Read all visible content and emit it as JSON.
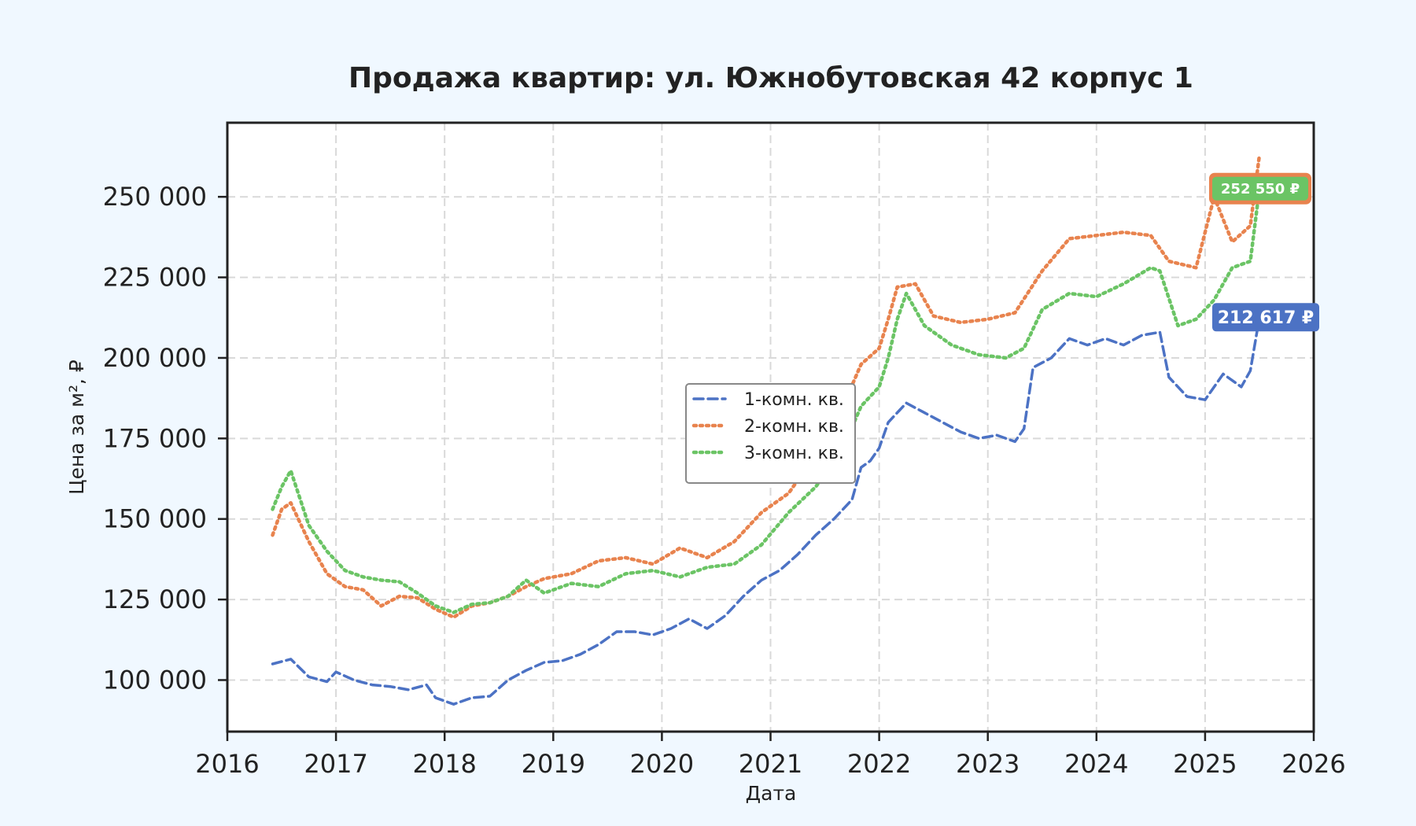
{
  "chart_data": {
    "type": "line",
    "title": "Продажа квартир: ул. Южнобутовская 42 корпус 1",
    "xlabel": "Дата",
    "ylabel": "Цена за м², ₽",
    "xlim": [
      "2016-01-01",
      "2026-01-01"
    ],
    "ylim": [
      84000,
      273000
    ],
    "x_ticks": [
      "2016",
      "2017",
      "2018",
      "2019",
      "2020",
      "2021",
      "2022",
      "2023",
      "2024",
      "2025",
      "2026"
    ],
    "y_ticks": [
      100000,
      125000,
      150000,
      175000,
      200000,
      225000,
      250000
    ],
    "y_tick_labels": [
      "100 000",
      "125 000",
      "150 000",
      "175 000",
      "200 000",
      "225 000",
      "250 000"
    ],
    "grid": true,
    "legend_position": "center",
    "series": [
      {
        "name": "1-комн. кв.",
        "color": "#4c72c4",
        "dash": "dashed",
        "end_label": "212 617 ₽",
        "points": [
          [
            "2016-06",
            105000
          ],
          [
            "2016-08",
            106500
          ],
          [
            "2016-10",
            101000
          ],
          [
            "2016-12",
            99500
          ],
          [
            "2017-01",
            102500
          ],
          [
            "2017-03",
            100000
          ],
          [
            "2017-05",
            98500
          ],
          [
            "2017-07",
            98000
          ],
          [
            "2017-09",
            97000
          ],
          [
            "2017-11",
            98500
          ],
          [
            "2017-12",
            94500
          ],
          [
            "2018-02",
            92500
          ],
          [
            "2018-04",
            94500
          ],
          [
            "2018-06",
            95000
          ],
          [
            "2018-08",
            100000
          ],
          [
            "2018-10",
            103000
          ],
          [
            "2018-12",
            105500
          ],
          [
            "2019-02",
            106000
          ],
          [
            "2019-04",
            108000
          ],
          [
            "2019-06",
            111000
          ],
          [
            "2019-08",
            115000
          ],
          [
            "2019-10",
            115000
          ],
          [
            "2019-12",
            114000
          ],
          [
            "2020-02",
            116000
          ],
          [
            "2020-04",
            119000
          ],
          [
            "2020-06",
            116000
          ],
          [
            "2020-08",
            120000
          ],
          [
            "2020-10",
            126000
          ],
          [
            "2020-12",
            131000
          ],
          [
            "2021-02",
            134000
          ],
          [
            "2021-04",
            139000
          ],
          [
            "2021-06",
            145000
          ],
          [
            "2021-08",
            150000
          ],
          [
            "2021-10",
            156000
          ],
          [
            "2021-11",
            166000
          ],
          [
            "2021-12",
            168000
          ],
          [
            "2022-01",
            172000
          ],
          [
            "2022-02",
            180000
          ],
          [
            "2022-04",
            186000
          ],
          [
            "2022-06",
            183000
          ],
          [
            "2022-08",
            180000
          ],
          [
            "2022-10",
            177000
          ],
          [
            "2022-12",
            175000
          ],
          [
            "2023-02",
            176000
          ],
          [
            "2023-04",
            174000
          ],
          [
            "2023-05",
            178000
          ],
          [
            "2023-06",
            197000
          ],
          [
            "2023-08",
            200000
          ],
          [
            "2023-10",
            206000
          ],
          [
            "2023-12",
            204000
          ],
          [
            "2024-02",
            206000
          ],
          [
            "2024-04",
            204000
          ],
          [
            "2024-06",
            207000
          ],
          [
            "2024-08",
            208000
          ],
          [
            "2024-09",
            194000
          ],
          [
            "2024-11",
            188000
          ],
          [
            "2025-01",
            187000
          ],
          [
            "2025-03",
            195000
          ],
          [
            "2025-05",
            191000
          ],
          [
            "2025-06",
            196000
          ],
          [
            "2025-07",
            212617
          ]
        ]
      },
      {
        "name": "2-комн. кв.",
        "color": "#e8834e",
        "dash": "dotted",
        "end_label": "",
        "points": [
          [
            "2016-06",
            145000
          ],
          [
            "2016-07",
            153000
          ],
          [
            "2016-08",
            155000
          ],
          [
            "2016-10",
            143000
          ],
          [
            "2016-12",
            133000
          ],
          [
            "2017-02",
            129000
          ],
          [
            "2017-04",
            128000
          ],
          [
            "2017-06",
            123000
          ],
          [
            "2017-08",
            126000
          ],
          [
            "2017-10",
            125500
          ],
          [
            "2017-12",
            122000
          ],
          [
            "2018-02",
            119500
          ],
          [
            "2018-04",
            123000
          ],
          [
            "2018-06",
            124000
          ],
          [
            "2018-08",
            126000
          ],
          [
            "2018-10",
            129000
          ],
          [
            "2018-12",
            131500
          ],
          [
            "2019-03",
            133000
          ],
          [
            "2019-06",
            137000
          ],
          [
            "2019-09",
            138000
          ],
          [
            "2019-12",
            136000
          ],
          [
            "2020-03",
            141000
          ],
          [
            "2020-06",
            138000
          ],
          [
            "2020-09",
            143000
          ],
          [
            "2020-12",
            152000
          ],
          [
            "2021-03",
            158000
          ],
          [
            "2021-05",
            166000
          ],
          [
            "2021-07",
            175000
          ],
          [
            "2021-09",
            185000
          ],
          [
            "2021-11",
            198000
          ],
          [
            "2022-01",
            203000
          ],
          [
            "2022-02",
            212000
          ],
          [
            "2022-03",
            222000
          ],
          [
            "2022-05",
            223000
          ],
          [
            "2022-07",
            213000
          ],
          [
            "2022-10",
            211000
          ],
          [
            "2023-01",
            212000
          ],
          [
            "2023-04",
            214000
          ],
          [
            "2023-07",
            227000
          ],
          [
            "2023-10",
            237000
          ],
          [
            "2024-01",
            238000
          ],
          [
            "2024-04",
            239000
          ],
          [
            "2024-07",
            238000
          ],
          [
            "2024-09",
            230000
          ],
          [
            "2024-12",
            228000
          ],
          [
            "2025-02",
            250000
          ],
          [
            "2025-04",
            236000
          ],
          [
            "2025-06",
            241000
          ],
          [
            "2025-07",
            263000
          ]
        ]
      },
      {
        "name": "3-комн. кв.",
        "color": "#6bc465",
        "dash": "dotted",
        "end_label": "252 550 ₽",
        "points": [
          [
            "2016-06",
            153000
          ],
          [
            "2016-07",
            160000
          ],
          [
            "2016-08",
            165000
          ],
          [
            "2016-10",
            148000
          ],
          [
            "2016-12",
            140000
          ],
          [
            "2017-02",
            134000
          ],
          [
            "2017-04",
            132000
          ],
          [
            "2017-06",
            131000
          ],
          [
            "2017-08",
            130500
          ],
          [
            "2017-10",
            127000
          ],
          [
            "2017-12",
            123000
          ],
          [
            "2018-02",
            121000
          ],
          [
            "2018-04",
            123500
          ],
          [
            "2018-06",
            124000
          ],
          [
            "2018-08",
            126000
          ],
          [
            "2018-10",
            131000
          ],
          [
            "2018-12",
            127000
          ],
          [
            "2019-03",
            130000
          ],
          [
            "2019-06",
            129000
          ],
          [
            "2019-09",
            133000
          ],
          [
            "2019-12",
            134000
          ],
          [
            "2020-03",
            132000
          ],
          [
            "2020-06",
            135000
          ],
          [
            "2020-09",
            136000
          ],
          [
            "2020-12",
            142000
          ],
          [
            "2021-03",
            152000
          ],
          [
            "2021-06",
            160000
          ],
          [
            "2021-09",
            172000
          ],
          [
            "2021-11",
            185000
          ],
          [
            "2022-01",
            191000
          ],
          [
            "2022-02",
            200000
          ],
          [
            "2022-03",
            212000
          ],
          [
            "2022-04",
            220000
          ],
          [
            "2022-06",
            210000
          ],
          [
            "2022-09",
            204000
          ],
          [
            "2022-12",
            201000
          ],
          [
            "2023-03",
            200000
          ],
          [
            "2023-05",
            203000
          ],
          [
            "2023-07",
            215000
          ],
          [
            "2023-10",
            220000
          ],
          [
            "2024-01",
            219000
          ],
          [
            "2024-04",
            223000
          ],
          [
            "2024-07",
            228000
          ],
          [
            "2024-08",
            227000
          ],
          [
            "2024-10",
            210000
          ],
          [
            "2024-12",
            212000
          ],
          [
            "2025-02",
            218000
          ],
          [
            "2025-04",
            228000
          ],
          [
            "2025-06",
            230000
          ],
          [
            "2025-07",
            252550
          ]
        ]
      }
    ]
  }
}
